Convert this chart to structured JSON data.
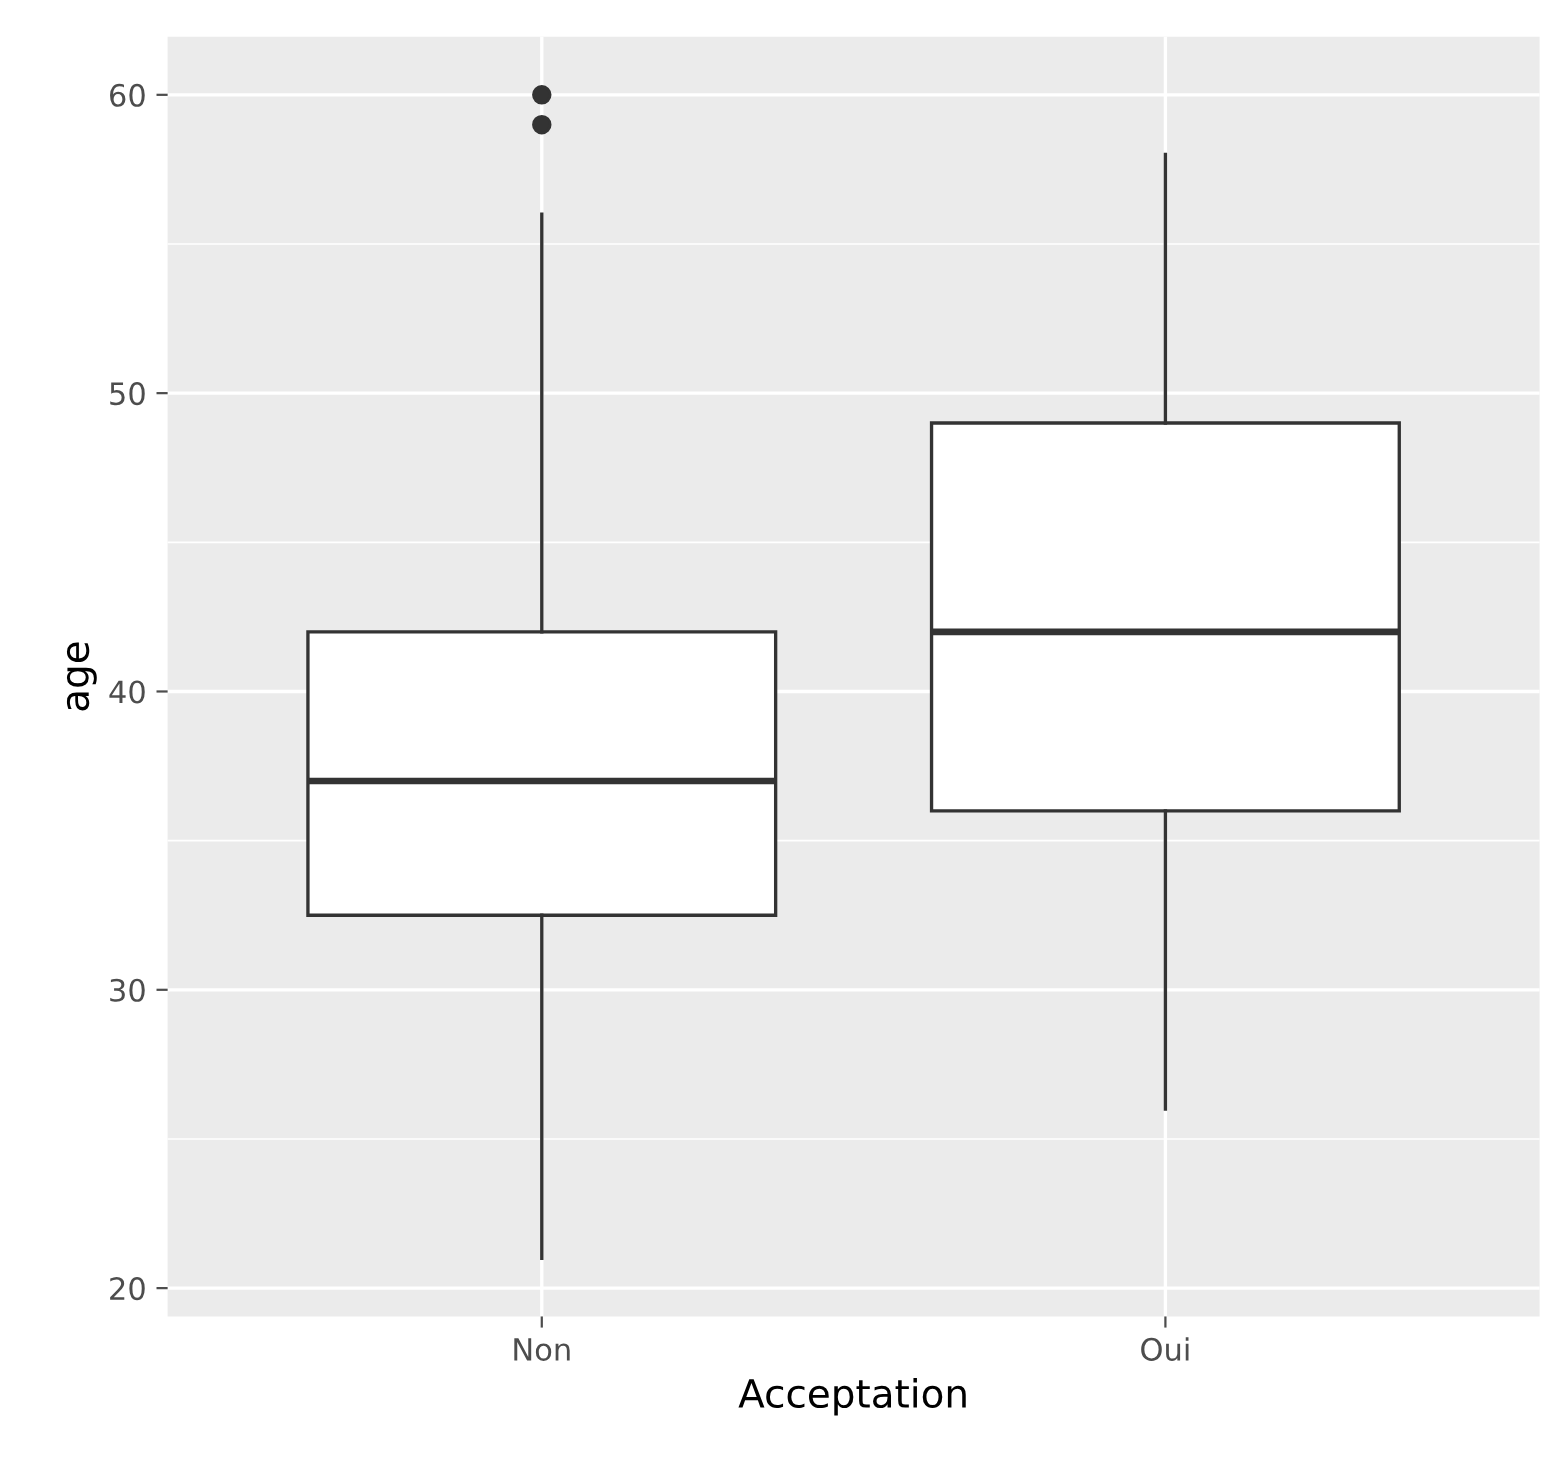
{
  "chart_data": {
    "type": "box",
    "xlabel": "Acceptation",
    "ylabel": "age",
    "categories": [
      "Non",
      "Oui"
    ],
    "boxes": [
      {
        "low": 21,
        "q1": 32.5,
        "median": 37,
        "q3": 42,
        "high": 56,
        "outliers": [
          59,
          60
        ]
      },
      {
        "low": 26,
        "q1": 36,
        "median": 42,
        "q3": 49,
        "high": 58
      }
    ],
    "ylim": [
      19.05,
      61.95
    ],
    "yticks": [
      20,
      30,
      40,
      50,
      60
    ],
    "grid": true
  }
}
